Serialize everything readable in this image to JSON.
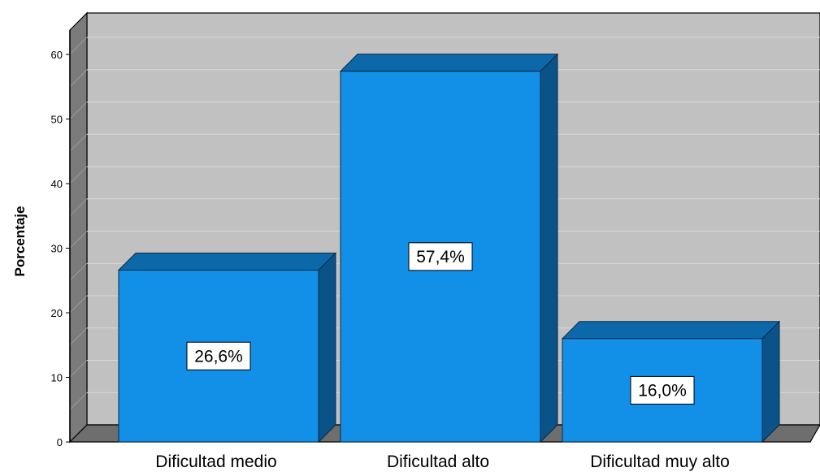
{
  "chart_data": {
    "type": "bar",
    "title": "",
    "xlabel": "",
    "ylabel": "Porcentaje",
    "categories": [
      "Dificultad medio",
      "Dificultad alto",
      "Dificultad muy alto"
    ],
    "values": [
      26.6,
      57.4,
      16.0
    ],
    "data_labels": [
      "26,6%",
      "57,4%",
      "16,0%"
    ],
    "y_ticks": [
      0,
      10,
      20,
      30,
      40,
      50,
      60
    ],
    "ylim": [
      0,
      65
    ],
    "grid": true,
    "three_d": true,
    "legend": "none",
    "colors": {
      "bar_front": "#128fe6",
      "bar_top": "#0d68a9",
      "bar_side": "#0a5389",
      "bar_edge": "#0a2a45",
      "plot_back": "#c1c1c1",
      "plot_side": "#7b7b7b",
      "plot_floor": "#6e6e6e",
      "gridline": "#d8d8d8"
    }
  }
}
